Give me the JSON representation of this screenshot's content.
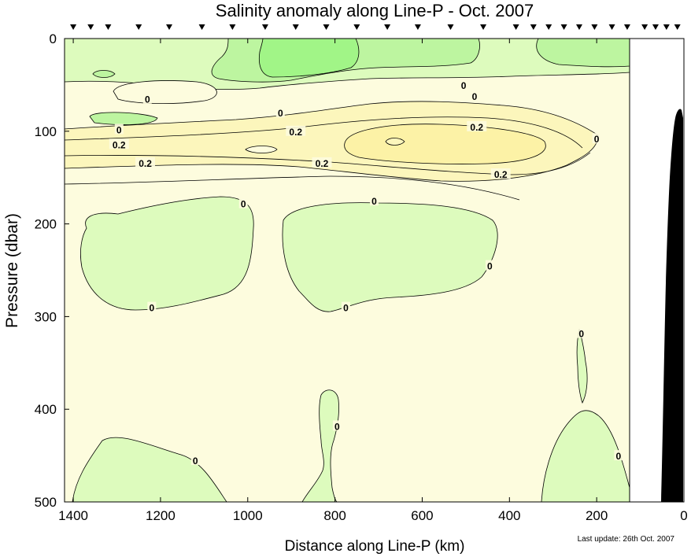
{
  "chart_data": {
    "type": "contour",
    "title": "Salinity anomaly along Line-P - Oct. 2007",
    "xlabel": "Distance along Line-P (km)",
    "ylabel": "Pressure (dbar)",
    "footnote": "Last update: 26th Oct. 2007",
    "x_reversed": true,
    "xlim": [
      1420,
      0
    ],
    "ylim": [
      0,
      500
    ],
    "y_reversed": true,
    "x_ticks": [
      1400,
      1200,
      1000,
      800,
      600,
      400,
      200,
      0
    ],
    "x_tick_labels": [
      "1400",
      "1200",
      "1000",
      "800",
      "600",
      "400",
      "200",
      "0"
    ],
    "y_ticks": [
      0,
      100,
      200,
      300,
      400,
      500
    ],
    "y_tick_labels": [
      "0",
      "100",
      "200",
      "300",
      "400",
      "500"
    ],
    "data_extent_km": 125,
    "station_markers_km": [
      1400,
      1360,
      1320,
      1250,
      1180,
      1105,
      1035,
      960,
      890,
      820,
      750,
      680,
      610,
      535,
      460,
      385,
      345,
      310,
      275,
      240,
      205,
      165,
      130,
      90,
      65,
      40,
      15
    ],
    "contour_labels": [
      {
        "text": "0",
        "x": 1230,
        "y": 65
      },
      {
        "text": "0",
        "x": 925,
        "y": 80
      },
      {
        "text": "0",
        "x": 505,
        "y": 50
      },
      {
        "text": "0",
        "x": 480,
        "y": 62
      },
      {
        "text": "0",
        "x": 1295,
        "y": 98
      },
      {
        "text": "0.2",
        "x": 890,
        "y": 100
      },
      {
        "text": "0.2",
        "x": 475,
        "y": 95
      },
      {
        "text": "0",
        "x": 200,
        "y": 108
      },
      {
        "text": "0.2",
        "x": 1295,
        "y": 114
      },
      {
        "text": "0.2",
        "x": 1235,
        "y": 134
      },
      {
        "text": "0.2",
        "x": 830,
        "y": 134
      },
      {
        "text": "0.2",
        "x": 420,
        "y": 146
      },
      {
        "text": "0",
        "x": 1010,
        "y": 178
      },
      {
        "text": "0",
        "x": 710,
        "y": 175
      },
      {
        "text": "0",
        "x": 445,
        "y": 245
      },
      {
        "text": "0",
        "x": 1220,
        "y": 290
      },
      {
        "text": "0",
        "x": 775,
        "y": 290
      },
      {
        "text": "0",
        "x": 235,
        "y": 318
      },
      {
        "text": "0",
        "x": 795,
        "y": 418
      },
      {
        "text": "0",
        "x": 1120,
        "y": 455
      },
      {
        "text": "0",
        "x": 150,
        "y": 450
      }
    ],
    "colors": {
      "background": "#fdfcde",
      "light_green": "#ddfbbd",
      "mid_green": "#bdf5a0",
      "bright_green": "#a1f587",
      "light_yellow": "#fcf6bc",
      "yellow": "#fcf2a6",
      "bathymetry": "#000000"
    }
  }
}
